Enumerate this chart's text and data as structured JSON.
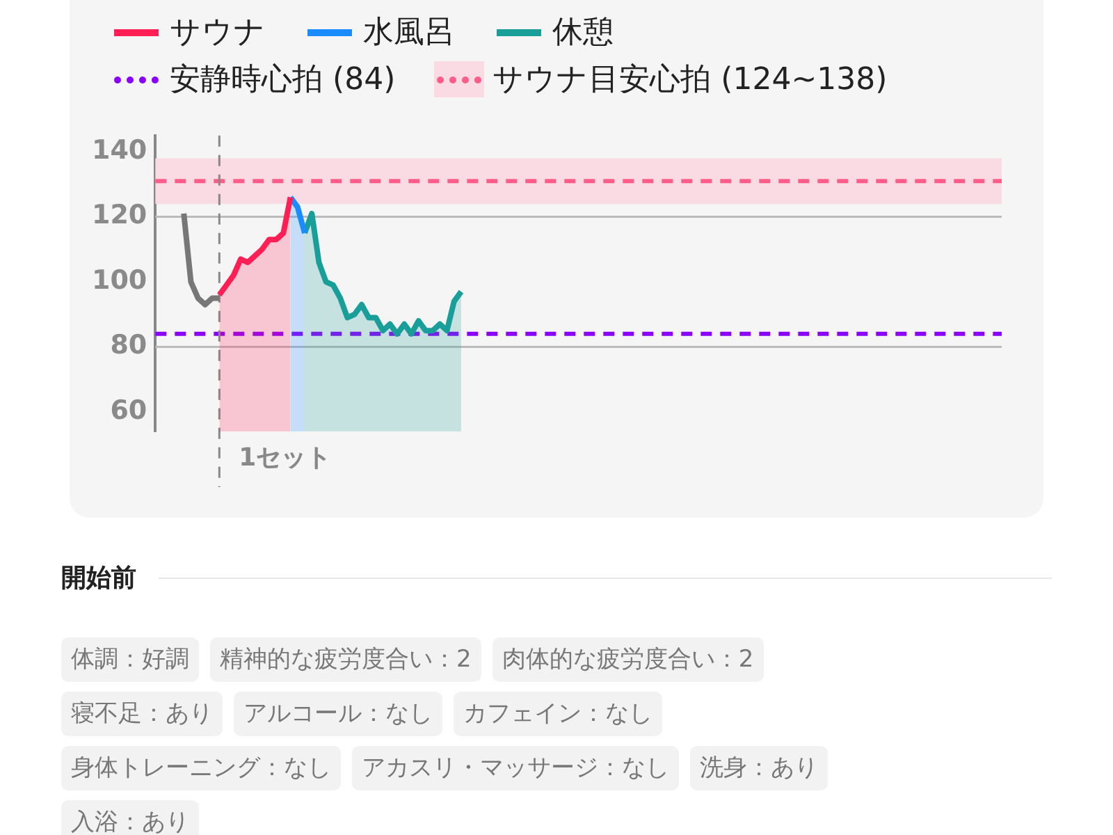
{
  "chart_data": {
    "type": "line",
    "categories": [
      null,
      null,
      null,
      null,
      null,
      null,
      null,
      null,
      null,
      null,
      null,
      null,
      null,
      null,
      null,
      null,
      null,
      null,
      null,
      null,
      null,
      null,
      null,
      null,
      null,
      null,
      null,
      null,
      null,
      null,
      null,
      null,
      null,
      null,
      null,
      null,
      null,
      null,
      null,
      null,
      null,
      null,
      null,
      null,
      null,
      null,
      null,
      null,
      null,
      null,
      null,
      null,
      null,
      null,
      null,
      null,
      null,
      null,
      null,
      null,
      null,
      null,
      null,
      null,
      null,
      null,
      null,
      null,
      null,
      null,
      null,
      null,
      null,
      null,
      null,
      null,
      null,
      null,
      null,
      null,
      null,
      null,
      null,
      null,
      null,
      null,
      null,
      null,
      null,
      null,
      null,
      null,
      null,
      null,
      null,
      null,
      null,
      null,
      null,
      null,
      null,
      null,
      null,
      null,
      null,
      null,
      null,
      null,
      null,
      null,
      null,
      null,
      null,
      null,
      null,
      null,
      null,
      null,
      null,
      null
    ],
    "series": [
      {
        "type": "line",
        "color": "#777777",
        "values": [
          null,
          null,
          null,
          null,
          121,
          100,
          95,
          93,
          95,
          95,
          null,
          null,
          null,
          null,
          null,
          null,
          null,
          null,
          null,
          null,
          null,
          null,
          null,
          null,
          null,
          null,
          null,
          null,
          null,
          null,
          null,
          null,
          null,
          null,
          null,
          null,
          null,
          null,
          null,
          null,
          null,
          null,
          null,
          null,
          null,
          null,
          null,
          null,
          null,
          null,
          null,
          null,
          null,
          null,
          null,
          null,
          null,
          null,
          null,
          null,
          null,
          null,
          null,
          null,
          null,
          null,
          null,
          null,
          null,
          null,
          null,
          null,
          null,
          null,
          null,
          null,
          null,
          null,
          null,
          null,
          null,
          null,
          null,
          null,
          null,
          null,
          null,
          null,
          null,
          null,
          null,
          null,
          null,
          null,
          null,
          null,
          null,
          null,
          null,
          null,
          null,
          null,
          null,
          null,
          null,
          null,
          null,
          null,
          null,
          null,
          null,
          null,
          null,
          null,
          null,
          null,
          null,
          null,
          null,
          null
        ]
      },
      {
        "type": "area",
        "name": "サウナ",
        "color": "#ff1f55",
        "values": [
          null,
          null,
          null,
          null,
          null,
          null,
          null,
          null,
          null,
          96,
          99,
          102,
          107,
          106,
          108,
          110,
          113,
          113,
          115,
          126,
          null,
          null,
          null,
          null,
          null,
          null,
          null,
          null,
          null,
          null,
          null,
          null,
          null,
          null,
          null,
          null,
          null,
          null,
          null,
          null,
          null,
          null,
          null,
          null,
          null,
          null,
          null,
          null,
          null,
          null,
          null,
          null,
          null,
          null,
          null,
          null,
          null,
          null,
          null,
          null,
          null,
          null,
          null,
          null,
          null,
          null,
          null,
          null,
          null,
          null,
          null,
          null,
          null,
          null,
          null,
          null,
          null,
          null,
          null,
          null,
          null,
          null,
          null,
          null,
          null,
          null,
          null,
          null,
          null,
          null,
          null,
          null,
          null,
          null,
          null,
          null,
          null,
          null,
          null,
          null,
          null,
          null,
          null,
          null,
          null,
          null,
          null,
          null,
          null,
          null,
          null,
          null,
          null,
          null,
          null,
          null,
          null,
          null,
          null,
          null
        ]
      },
      {
        "type": "area",
        "name": "水風呂",
        "color": "#1a8cff",
        "values": [
          null,
          null,
          null,
          null,
          null,
          null,
          null,
          null,
          null,
          null,
          null,
          null,
          null,
          null,
          null,
          null,
          null,
          null,
          null,
          126,
          123,
          115,
          null,
          null,
          null,
          null,
          null,
          null,
          null,
          null,
          null,
          null,
          null,
          null,
          null,
          null,
          null,
          null,
          null,
          null,
          null,
          null,
          null,
          null,
          null,
          null,
          null,
          null,
          null,
          null,
          null,
          null,
          null,
          null,
          null,
          null,
          null,
          null,
          null,
          null,
          null,
          null,
          null,
          null,
          null,
          null,
          null,
          null,
          null,
          null,
          null,
          null,
          null,
          null,
          null,
          null,
          null,
          null,
          null,
          null,
          null,
          null,
          null,
          null,
          null,
          null,
          null,
          null,
          null,
          null,
          null,
          null,
          null,
          null,
          null,
          null,
          null,
          null,
          null,
          null,
          null,
          null,
          null,
          null,
          null,
          null,
          null,
          null,
          null,
          null,
          null,
          null,
          null,
          null,
          null,
          null,
          null,
          null,
          null,
          null
        ]
      },
      {
        "type": "area",
        "name": "休憩",
        "color": "#1a9e9a",
        "values": [
          null,
          null,
          null,
          null,
          null,
          null,
          null,
          null,
          null,
          null,
          null,
          null,
          null,
          null,
          null,
          null,
          null,
          null,
          null,
          null,
          null,
          115,
          121,
          106,
          100,
          99,
          95,
          89,
          90,
          93,
          89,
          89,
          85,
          87,
          84,
          87,
          84,
          88,
          85,
          85,
          87,
          85,
          94,
          97,
          null,
          null,
          null,
          null,
          null,
          null,
          null,
          null,
          null,
          null,
          null,
          null,
          null,
          null,
          null,
          null,
          null,
          null,
          null,
          null,
          null,
          null,
          null,
          null,
          null,
          null,
          null,
          null,
          null,
          null,
          null,
          null,
          null,
          null,
          null,
          null,
          null,
          null,
          null,
          null,
          null,
          null,
          null,
          null,
          null,
          null,
          null,
          null,
          null,
          null,
          null,
          null,
          null,
          null,
          null,
          null,
          null,
          null,
          null,
          null,
          null,
          null,
          null,
          null,
          null,
          null,
          null,
          null,
          null,
          null,
          null,
          null,
          null,
          null,
          null,
          null
        ]
      }
    ],
    "ylim": [
      54,
      145
    ],
    "yticks": [
      60,
      80,
      100,
      120,
      140
    ],
    "tick_labels": "y",
    "grid": false,
    "legend": "top left",
    "ref_lines": [
      {
        "axis": "y",
        "value": 120,
        "color": "#bbbbbb",
        "line_style": "solid"
      },
      {
        "axis": "y",
        "value": 80,
        "color": "#bbbbbb",
        "line_style": "solid"
      },
      {
        "axis": "y",
        "value": 84,
        "label": "安静時心拍 (84)",
        "color": "#8a00ff",
        "line_style": "dashed"
      },
      {
        "axis": "y",
        "value": 131,
        "color": "#ff5c8a",
        "line_style": "dashed"
      }
    ],
    "bands": [
      {
        "axis": "y",
        "from": 124,
        "to": 138,
        "label": "サウナ目安心拍 (124~138)",
        "color": "#fadbe4"
      }
    ],
    "annotations": [
      "1セット",
      "開始前",
      "体調：好調",
      "精神的な疲労度合い：2",
      "肉体的な疲労度合い：2",
      "寝不足：あり",
      "アルコール：なし",
      "カフェイン：なし",
      "身体トレーニング：なし",
      "アカスリ・マッサージ：なし",
      "洗身：あり",
      "入浴：あり"
    ]
  }
}
